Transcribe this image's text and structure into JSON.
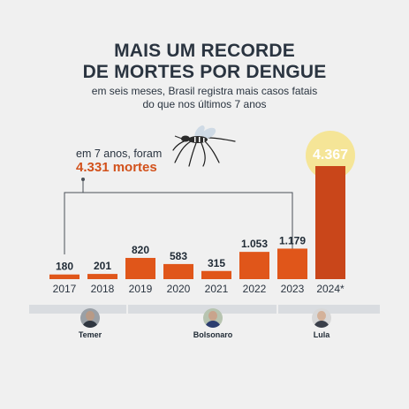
{
  "header": {
    "title_line1": "MAIS UM RECORDE",
    "title_line2": "DE MORTES POR DENGUE",
    "subtitle_line1": "em seis meses, Brasil registra mais casos fatais",
    "subtitle_line2": "do que nos últimos 7 anos"
  },
  "callout": {
    "line1": "em 7 anos, foram",
    "line2": "4.331 mortes"
  },
  "presidents": [
    {
      "name": "Temer"
    },
    {
      "name": "Bolsonaro"
    },
    {
      "name": "Lula"
    }
  ],
  "colors": {
    "bar": "#e0561a",
    "bar_highlight": "#c9461a",
    "glow": "#f7e27a",
    "text": "#2a3440"
  },
  "icons": [
    "mosquito-icon"
  ],
  "chart_data": {
    "type": "bar",
    "categories": [
      "2017",
      "2018",
      "2019",
      "2020",
      "2021",
      "2022",
      "2023",
      "2024*"
    ],
    "values": [
      180,
      201,
      820,
      583,
      315,
      1053,
      1179,
      4367
    ],
    "value_labels": [
      "180",
      "201",
      "820",
      "583",
      "315",
      "1.053",
      "1.179",
      "4.367"
    ],
    "title": "MAIS UM RECORDE DE MORTES POR DENGUE",
    "subtitle": "em seis meses, Brasil registra mais casos fatais do que nos últimos 7 anos",
    "annotation": "em 7 anos, foram 4.331 mortes",
    "grid": false,
    "legend": "none"
  }
}
